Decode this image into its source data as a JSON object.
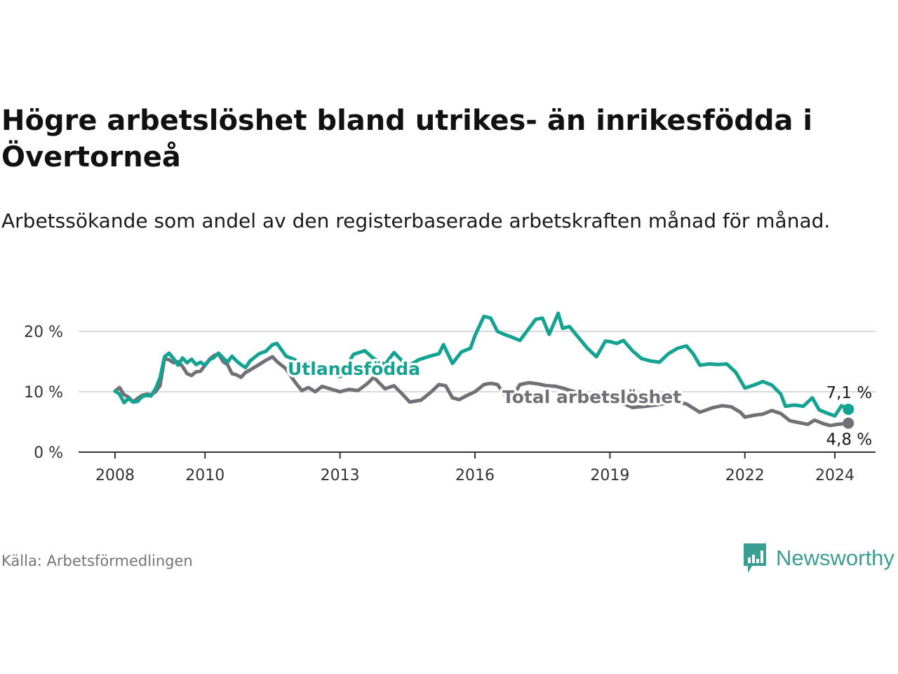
{
  "title": "Högre arbetslöshet bland utrikes- än inrikesfödda i Övertorneå",
  "subtitle": "Arbetssökande som andel av den registerbaserade arbetskraften månad för månad.",
  "source": "Källa: Arbetsförmedlingen",
  "brand": "Newsworthy",
  "colors": {
    "utlandsfodda": "#14a291",
    "total": "#727077",
    "grid": "#d9d9d9",
    "brand": "#3b9e93"
  },
  "chart_data": {
    "type": "line",
    "title": "Högre arbetslöshet bland utrikes- än inrikesfödda i Övertorneå",
    "ylabel": "",
    "xlabel": "",
    "ylim": [
      0,
      25
    ],
    "xlim": [
      2007.7,
      2025.0
    ],
    "y_ticks": [
      0,
      10,
      20
    ],
    "y_tick_labels": [
      "0 %",
      "10 %",
      "20 %"
    ],
    "x_ticks": [
      2008,
      2010,
      2013,
      2016,
      2019,
      2022,
      2024
    ],
    "x_tick_labels": [
      "2008",
      "2010",
      "2013",
      "2016",
      "2019",
      "2022",
      "2024"
    ],
    "series": [
      {
        "name": "Utlandsfödda",
        "end_label": "7,1 %",
        "points": [
          [
            2008.0,
            10.1
          ],
          [
            2008.1,
            9.6
          ],
          [
            2008.2,
            8.2
          ],
          [
            2008.3,
            8.9
          ],
          [
            2008.4,
            8.3
          ],
          [
            2008.5,
            8.4
          ],
          [
            2008.6,
            9.2
          ],
          [
            2008.7,
            9.4
          ],
          [
            2008.8,
            9.3
          ],
          [
            2008.9,
            10.5
          ],
          [
            2009.0,
            12.3
          ],
          [
            2009.1,
            15.8
          ],
          [
            2009.2,
            16.4
          ],
          [
            2009.3,
            15.5
          ],
          [
            2009.4,
            14.4
          ],
          [
            2009.5,
            15.6
          ],
          [
            2009.6,
            14.8
          ],
          [
            2009.7,
            15.4
          ],
          [
            2009.8,
            14.5
          ],
          [
            2009.9,
            14.9
          ],
          [
            2010.0,
            14.4
          ],
          [
            2010.1,
            15.3
          ],
          [
            2010.2,
            15.7
          ],
          [
            2010.3,
            16.4
          ],
          [
            2010.4,
            15.6
          ],
          [
            2010.5,
            14.9
          ],
          [
            2010.6,
            15.9
          ],
          [
            2010.7,
            15.1
          ],
          [
            2010.8,
            14.5
          ],
          [
            2010.9,
            14.0
          ],
          [
            2011.0,
            15.1
          ],
          [
            2011.2,
            16.3
          ],
          [
            2011.35,
            16.7
          ],
          [
            2011.5,
            17.8
          ],
          [
            2011.6,
            18.0
          ],
          [
            2011.8,
            15.9
          ],
          [
            2012.0,
            15.3
          ],
          [
            2012.15,
            13.4
          ],
          [
            2012.35,
            15.0
          ],
          [
            2012.55,
            13.6
          ],
          [
            2013.0,
            12.5
          ],
          [
            2013.3,
            16.2
          ],
          [
            2013.55,
            16.8
          ],
          [
            2013.75,
            15.5
          ],
          [
            2014.0,
            14.5
          ],
          [
            2014.2,
            16.5
          ],
          [
            2014.5,
            14.2
          ],
          [
            2014.75,
            15.3
          ],
          [
            2015.0,
            15.9
          ],
          [
            2015.2,
            16.3
          ],
          [
            2015.3,
            17.8
          ],
          [
            2015.5,
            14.7
          ],
          [
            2015.7,
            16.6
          ],
          [
            2015.9,
            17.2
          ],
          [
            2016.0,
            19.3
          ],
          [
            2016.2,
            22.5
          ],
          [
            2016.35,
            22.2
          ],
          [
            2016.5,
            20.0
          ],
          [
            2016.65,
            19.5
          ],
          [
            2016.8,
            19.1
          ],
          [
            2017.0,
            18.5
          ],
          [
            2017.2,
            20.5
          ],
          [
            2017.35,
            22.0
          ],
          [
            2017.5,
            22.2
          ],
          [
            2017.65,
            19.5
          ],
          [
            2017.85,
            23.0
          ],
          [
            2017.95,
            20.5
          ],
          [
            2018.1,
            20.8
          ],
          [
            2018.3,
            19.0
          ],
          [
            2018.5,
            17.2
          ],
          [
            2018.7,
            15.8
          ],
          [
            2018.9,
            18.4
          ],
          [
            2019.0,
            18.3
          ],
          [
            2019.15,
            18.0
          ],
          [
            2019.3,
            18.5
          ],
          [
            2019.5,
            16.8
          ],
          [
            2019.7,
            15.5
          ],
          [
            2019.9,
            15.1
          ],
          [
            2020.1,
            14.9
          ],
          [
            2020.3,
            16.3
          ],
          [
            2020.5,
            17.2
          ],
          [
            2020.7,
            17.6
          ],
          [
            2020.85,
            16.3
          ],
          [
            2021.0,
            14.4
          ],
          [
            2021.2,
            14.6
          ],
          [
            2021.4,
            14.5
          ],
          [
            2021.6,
            14.6
          ],
          [
            2021.8,
            13.2
          ],
          [
            2022.0,
            10.6
          ],
          [
            2022.2,
            11.1
          ],
          [
            2022.4,
            11.7
          ],
          [
            2022.6,
            11.1
          ],
          [
            2022.8,
            9.6
          ],
          [
            2022.9,
            7.6
          ],
          [
            2023.1,
            7.8
          ],
          [
            2023.3,
            7.6
          ],
          [
            2023.5,
            9.0
          ],
          [
            2023.65,
            7.0
          ],
          [
            2023.85,
            6.4
          ],
          [
            2024.0,
            6.0
          ],
          [
            2024.15,
            7.7
          ],
          [
            2024.3,
            7.1
          ]
        ]
      },
      {
        "name": "Total arbetslöshet",
        "end_label": "4,8 %",
        "points": [
          [
            2008.0,
            10.1
          ],
          [
            2008.1,
            10.7
          ],
          [
            2008.2,
            9.5
          ],
          [
            2008.3,
            9.1
          ],
          [
            2008.4,
            8.3
          ],
          [
            2008.5,
            8.9
          ],
          [
            2008.6,
            9.4
          ],
          [
            2008.7,
            9.6
          ],
          [
            2008.8,
            9.5
          ],
          [
            2008.9,
            10.0
          ],
          [
            2009.0,
            11.0
          ],
          [
            2009.1,
            15.5
          ],
          [
            2009.2,
            15.3
          ],
          [
            2009.3,
            14.8
          ],
          [
            2009.4,
            15.0
          ],
          [
            2009.5,
            14.2
          ],
          [
            2009.6,
            13.0
          ],
          [
            2009.7,
            12.7
          ],
          [
            2009.8,
            13.3
          ],
          [
            2009.9,
            13.4
          ],
          [
            2010.0,
            14.4
          ],
          [
            2010.1,
            15.4
          ],
          [
            2010.2,
            16.0
          ],
          [
            2010.3,
            16.3
          ],
          [
            2010.4,
            15.0
          ],
          [
            2010.5,
            14.5
          ],
          [
            2010.6,
            13.0
          ],
          [
            2010.7,
            12.8
          ],
          [
            2010.8,
            12.4
          ],
          [
            2010.9,
            13.2
          ],
          [
            2011.0,
            13.6
          ],
          [
            2011.2,
            14.5
          ],
          [
            2011.35,
            15.2
          ],
          [
            2011.5,
            15.8
          ],
          [
            2011.6,
            15.0
          ],
          [
            2011.8,
            13.8
          ],
          [
            2012.0,
            11.6
          ],
          [
            2012.15,
            10.2
          ],
          [
            2012.3,
            10.7
          ],
          [
            2012.45,
            10.0
          ],
          [
            2012.6,
            10.9
          ],
          [
            2013.0,
            10.0
          ],
          [
            2013.2,
            10.4
          ],
          [
            2013.4,
            10.2
          ],
          [
            2013.6,
            11.3
          ],
          [
            2013.75,
            12.4
          ],
          [
            2014.0,
            10.5
          ],
          [
            2014.2,
            11.0
          ],
          [
            2014.4,
            9.5
          ],
          [
            2014.55,
            8.3
          ],
          [
            2014.8,
            8.6
          ],
          [
            2015.0,
            9.8
          ],
          [
            2015.2,
            11.2
          ],
          [
            2015.35,
            11.0
          ],
          [
            2015.5,
            9.0
          ],
          [
            2015.65,
            8.7
          ],
          [
            2015.8,
            9.3
          ],
          [
            2016.0,
            10.0
          ],
          [
            2016.2,
            11.2
          ],
          [
            2016.35,
            11.4
          ],
          [
            2016.5,
            11.2
          ],
          [
            2016.65,
            9.6
          ],
          [
            2016.8,
            8.7
          ],
          [
            2017.0,
            11.2
          ],
          [
            2017.2,
            11.5
          ],
          [
            2017.4,
            11.3
          ],
          [
            2017.6,
            11.0
          ],
          [
            2017.8,
            10.9
          ],
          [
            2018.0,
            10.5
          ],
          [
            2018.3,
            9.8
          ],
          [
            2018.6,
            9.0
          ],
          [
            2018.9,
            9.5
          ],
          [
            2019.2,
            8.4
          ],
          [
            2019.5,
            7.4
          ],
          [
            2019.8,
            7.6
          ],
          [
            2020.1,
            7.9
          ],
          [
            2020.4,
            8.3
          ],
          [
            2020.7,
            8.0
          ],
          [
            2021.0,
            6.6
          ],
          [
            2021.3,
            7.4
          ],
          [
            2021.5,
            7.7
          ],
          [
            2021.7,
            7.5
          ],
          [
            2021.9,
            6.6
          ],
          [
            2022.0,
            5.8
          ],
          [
            2022.2,
            6.1
          ],
          [
            2022.4,
            6.3
          ],
          [
            2022.6,
            6.9
          ],
          [
            2022.8,
            6.4
          ],
          [
            2023.0,
            5.2
          ],
          [
            2023.2,
            4.9
          ],
          [
            2023.4,
            4.6
          ],
          [
            2023.55,
            5.3
          ],
          [
            2023.75,
            4.7
          ],
          [
            2023.9,
            4.4
          ],
          [
            2024.05,
            4.6
          ],
          [
            2024.2,
            4.7
          ],
          [
            2024.3,
            4.8
          ]
        ]
      }
    ],
    "annotations": [
      {
        "text": "Utlandsfödda",
        "series": "Utlandsfödda"
      },
      {
        "text": "Total arbetslöshet",
        "series": "Total arbetslöshet"
      }
    ]
  }
}
